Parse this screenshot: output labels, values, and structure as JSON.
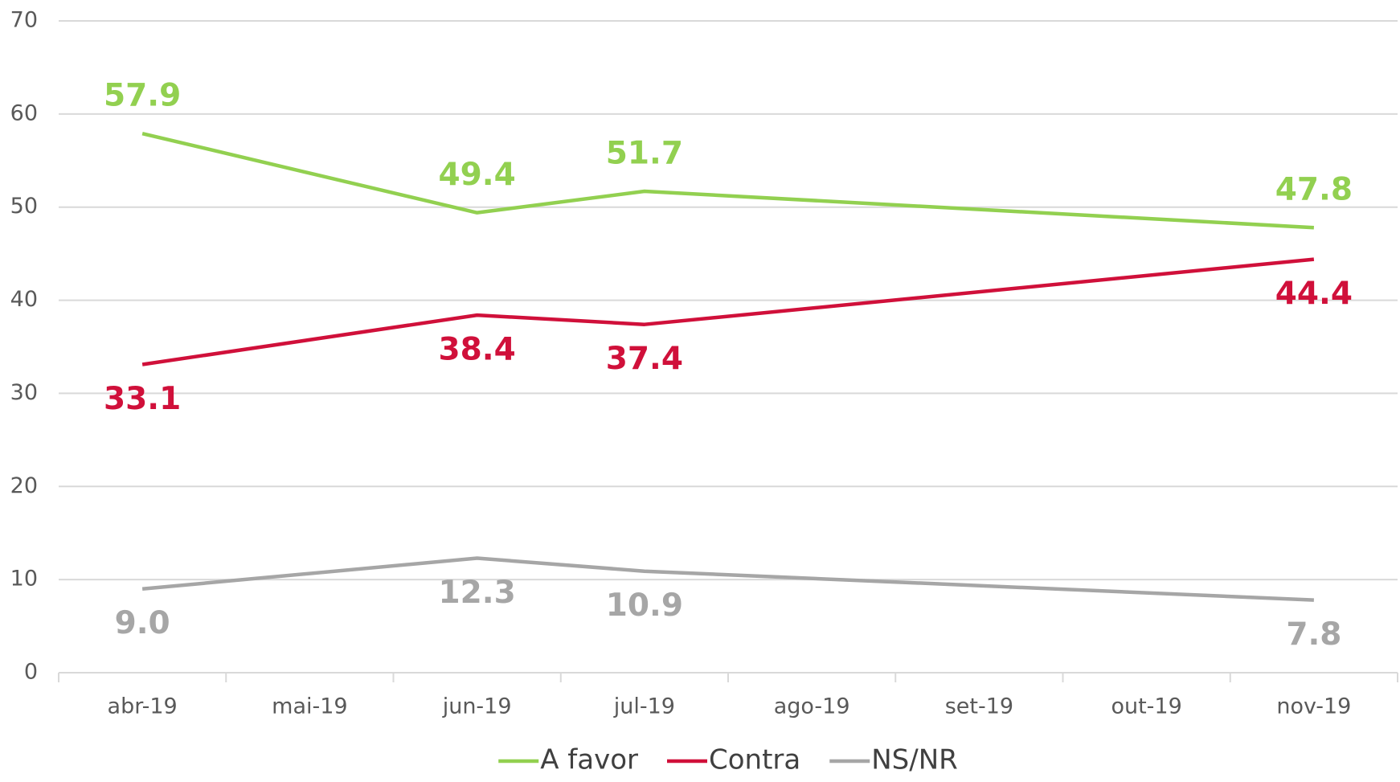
{
  "chart_data": {
    "type": "line",
    "categories": [
      "abr-19",
      "mai-19",
      "jun-19",
      "jul-19",
      "ago-19",
      "set-19",
      "out-19",
      "nov-19"
    ],
    "series": [
      {
        "name": "A favor",
        "color": "#92d050",
        "x": [
          "abr-19",
          "jun-19",
          "jul-19",
          "nov-19"
        ],
        "values": [
          57.9,
          49.4,
          51.7,
          47.8
        ],
        "value_labels": [
          "57.9",
          "49.4",
          "51.7",
          "47.8"
        ]
      },
      {
        "name": "Contra",
        "color": "#d0103a",
        "x": [
          "abr-19",
          "jun-19",
          "jul-19",
          "nov-19"
        ],
        "values": [
          33.1,
          38.4,
          37.4,
          44.4
        ],
        "value_labels": [
          "33.1",
          "38.4",
          "37.4",
          "44.4"
        ]
      },
      {
        "name": "NS/NR",
        "color": "#a6a6a6",
        "x": [
          "abr-19",
          "jun-19",
          "jul-19",
          "nov-19"
        ],
        "values": [
          9.0,
          12.3,
          10.9,
          7.8
        ],
        "value_labels": [
          "9.0",
          "12.3",
          "10.9",
          "7.8"
        ]
      }
    ],
    "ylim": [
      0,
      70
    ],
    "yticks": [
      0,
      10,
      20,
      30,
      40,
      50,
      60,
      70
    ],
    "grid": true,
    "legend": "bottom"
  }
}
